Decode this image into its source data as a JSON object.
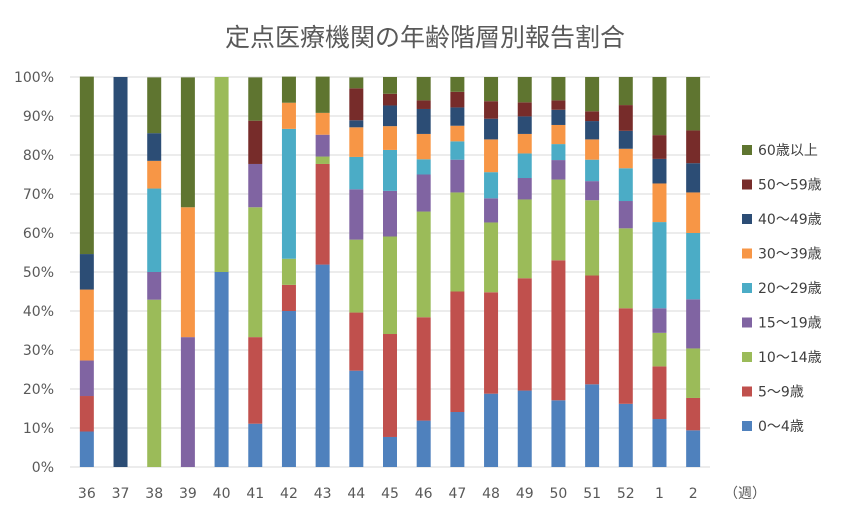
{
  "chart_data": {
    "type": "bar",
    "stacked": "percent",
    "title": "定点医療機関の年齢階層別報告割合",
    "xlabel": "（週）",
    "ylabel": "",
    "ylim": [
      0,
      100
    ],
    "yticks": [
      "0%",
      "10%",
      "20%",
      "30%",
      "40%",
      "50%",
      "60%",
      "70%",
      "80%",
      "90%",
      "100%"
    ],
    "grid": true,
    "legend_position": "right",
    "categories": [
      "36",
      "37",
      "38",
      "39",
      "40",
      "41",
      "42",
      "43",
      "44",
      "45",
      "46",
      "47",
      "48",
      "49",
      "50",
      "51",
      "52",
      "1",
      "2"
    ],
    "series": [
      {
        "name": "0～4歳",
        "color": "#4F81BD",
        "values": [
          9.1,
          0,
          0,
          0,
          50,
          11.1,
          40,
          51.9,
          24.7,
          7.7,
          11.9,
          14.1,
          18.8,
          19.6,
          17.1,
          21.2,
          16.2,
          12.3,
          9.4
        ]
      },
      {
        "name": "5～9歳",
        "color": "#C0504D",
        "values": [
          9.1,
          0,
          0,
          0,
          0,
          22.2,
          6.7,
          25.8,
          14.9,
          26.4,
          26.5,
          30.9,
          26.0,
          28.8,
          35.9,
          27.9,
          24.5,
          13.5,
          8.3
        ]
      },
      {
        "name": "10～14歳",
        "color": "#9BBB59",
        "values": [
          0,
          0,
          42.9,
          0,
          50,
          33.3,
          6.7,
          1.9,
          18.7,
          25.0,
          27.1,
          25.4,
          17.9,
          20.2,
          20.7,
          19.3,
          20.5,
          8.6,
          12.7
        ]
      },
      {
        "name": "15～19歳",
        "color": "#8064A2",
        "values": [
          9.1,
          0,
          7.1,
          33.3,
          0,
          11.1,
          0,
          5.6,
          12.9,
          11.7,
          9.5,
          8.4,
          6.2,
          5.5,
          5.0,
          4.9,
          7.0,
          6.3,
          12.6
        ]
      },
      {
        "name": "20～29歳",
        "color": "#4BACC6",
        "values": [
          0,
          0,
          21.4,
          0,
          0,
          0,
          33.3,
          0,
          8.3,
          10.5,
          3.9,
          4.7,
          6.7,
          6.3,
          4.1,
          5.5,
          8.4,
          22.1,
          17.0
        ]
      },
      {
        "name": "30～39歳",
        "color": "#F79646",
        "values": [
          18.2,
          0,
          7.1,
          33.3,
          0,
          0,
          6.7,
          5.6,
          7.6,
          6.1,
          6.5,
          4.0,
          8.4,
          5.0,
          4.9,
          5.2,
          5.0,
          9.9,
          10.4
        ]
      },
      {
        "name": "40～49歳",
        "color": "#2C4D75",
        "values": [
          9.1,
          100,
          7.1,
          0,
          0,
          0,
          0,
          0,
          1.8,
          5.3,
          6.4,
          4.7,
          5.3,
          4.5,
          3.9,
          4.7,
          4.6,
          6.3,
          7.5
        ]
      },
      {
        "name": "50～59歳",
        "color": "#772C2A",
        "values": [
          0,
          0,
          0,
          0,
          0,
          11.1,
          0,
          0,
          8.2,
          3.0,
          2.2,
          4.0,
          4.5,
          3.6,
          2.4,
          2.5,
          6.6,
          6.1,
          8.4
        ]
      },
      {
        "name": "60歳以上",
        "color": "#5F7530",
        "values": [
          45.5,
          0,
          14.3,
          33.3,
          0,
          11.1,
          6.7,
          9.3,
          2.8,
          4.3,
          6.0,
          3.8,
          6.2,
          6.5,
          6.0,
          8.8,
          7.2,
          14.9,
          13.7
        ]
      }
    ]
  }
}
